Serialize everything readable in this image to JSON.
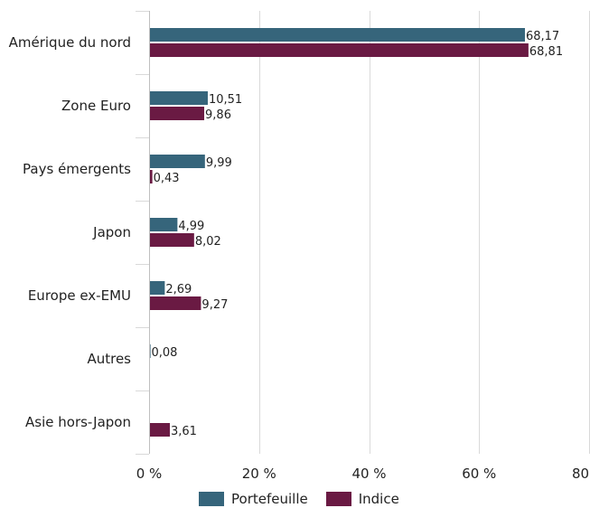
{
  "chart_data": {
    "type": "bar",
    "orientation": "horizontal",
    "categories": [
      "Amérique du nord",
      "Zone Euro",
      "Pays émergents",
      "Japon",
      "Europe ex-EMU",
      "Autres",
      "Asie hors-Japon"
    ],
    "series": [
      {
        "name": "Portefeuille",
        "color": "#36657b",
        "values": [
          68.17,
          10.51,
          9.99,
          4.99,
          2.69,
          0.08,
          null
        ],
        "labels": [
          "68,17",
          "10,51",
          "9,99",
          "4,99",
          "2,69",
          "0,08",
          ""
        ]
      },
      {
        "name": "Indice",
        "color": "#6a1a43",
        "values": [
          68.81,
          9.86,
          0.43,
          8.02,
          9.27,
          null,
          3.61
        ],
        "labels": [
          "68,81",
          "9,86",
          "0,43",
          "8,02",
          "9,27",
          "",
          "3,61"
        ]
      }
    ],
    "xlim": [
      0,
      80
    ],
    "xticks": [
      0,
      20,
      40,
      60,
      80
    ],
    "xtick_labels": [
      "0 %",
      "20 %",
      "40 %",
      "60 %",
      "80 %"
    ],
    "grid": true,
    "legend_position": "bottom"
  }
}
